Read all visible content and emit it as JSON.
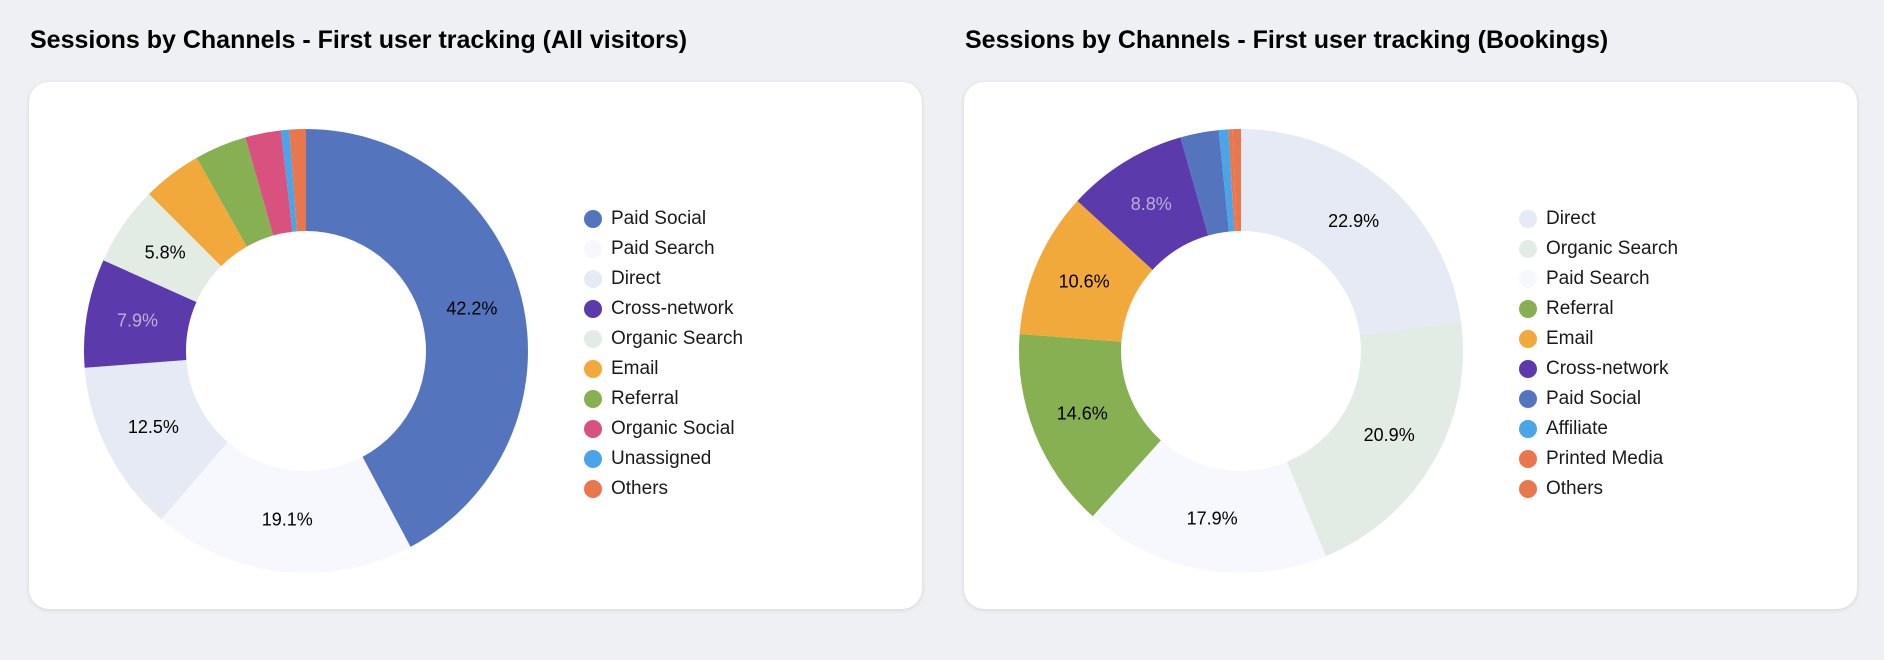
{
  "chart_data": [
    {
      "type": "pie",
      "donut": true,
      "title": "Sessions by Channels - First user tracking (All visitors)",
      "legend_position": "right",
      "categories": [
        "Paid Social",
        "Paid Search",
        "Direct",
        "Cross-network",
        "Organic Search",
        "Email",
        "Referral",
        "Organic Social",
        "Unassigned",
        "Others"
      ],
      "values": [
        42.2,
        19.1,
        12.5,
        7.9,
        5.8,
        4.3,
        3.8,
        2.6,
        0.6,
        1.2
      ],
      "value_labels": [
        "42.2%",
        "19.1%",
        "12.5%",
        "7.9%",
        "5.8%",
        "",
        "",
        "",
        "",
        ""
      ],
      "label_colors": [
        "#000000",
        "#000000",
        "#000000",
        "#b9b1d8",
        "#000000",
        "",
        "",
        "",
        "",
        ""
      ],
      "colors": [
        "#5475be",
        "#f6f8fd",
        "#e6eaf5",
        "#5b3aab",
        "#e3ebe5",
        "#f2a93c",
        "#86b052",
        "#d9517f",
        "#4aa4e8",
        "#e9774d"
      ]
    },
    {
      "type": "pie",
      "donut": true,
      "title": "Sessions by Channels - First user tracking (Bookings)",
      "legend_position": "right",
      "categories": [
        "Direct",
        "Organic Search",
        "Paid Search",
        "Referral",
        "Email",
        "Cross-network",
        "Paid Social",
        "Affiliate",
        "Printed Media",
        "Others"
      ],
      "values": [
        22.9,
        20.9,
        17.9,
        14.6,
        10.6,
        8.8,
        2.8,
        0.7,
        0.3,
        0.6
      ],
      "value_labels": [
        "22.9%",
        "20.9%",
        "17.9%",
        "14.6%",
        "10.6%",
        "8.8%",
        "",
        "",
        "",
        ""
      ],
      "label_colors": [
        "#000000",
        "#000000",
        "#000000",
        "#000000",
        "#000000",
        "#b9b1d8",
        "",
        "",
        "",
        ""
      ],
      "colors": [
        "#e6eaf5",
        "#e3ebe5",
        "#f6f8fd",
        "#86b052",
        "#f2a93c",
        "#5b3aab",
        "#5475be",
        "#4aa4e8",
        "#e9774d",
        "#e9774d"
      ]
    }
  ]
}
